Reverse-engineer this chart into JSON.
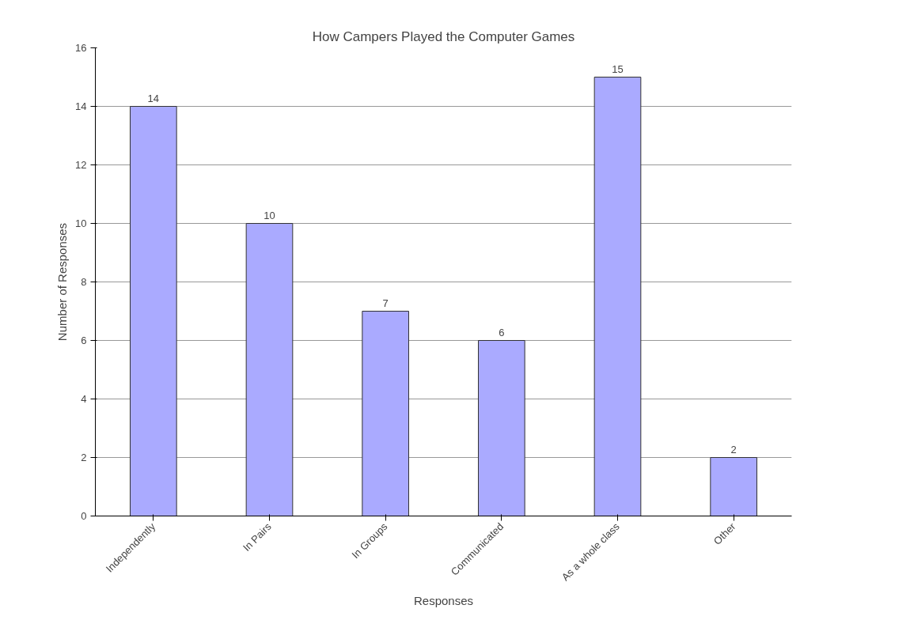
{
  "chart_data": {
    "type": "bar",
    "title": "How Campers Played the Computer Games",
    "xlabel": "Responses",
    "ylabel": "Number of Responses",
    "categories": [
      "Independently",
      "In Pairs",
      "In Groups",
      "Communicated",
      "As a whole class",
      "Other"
    ],
    "values": [
      14,
      10,
      7,
      6,
      15,
      2
    ],
    "color": "#aaaaff",
    "ylim": [
      0,
      16
    ],
    "yticks": [
      0,
      2,
      4,
      6,
      8,
      10,
      12,
      14,
      16
    ],
    "grid": "y",
    "data_labels": true
  }
}
